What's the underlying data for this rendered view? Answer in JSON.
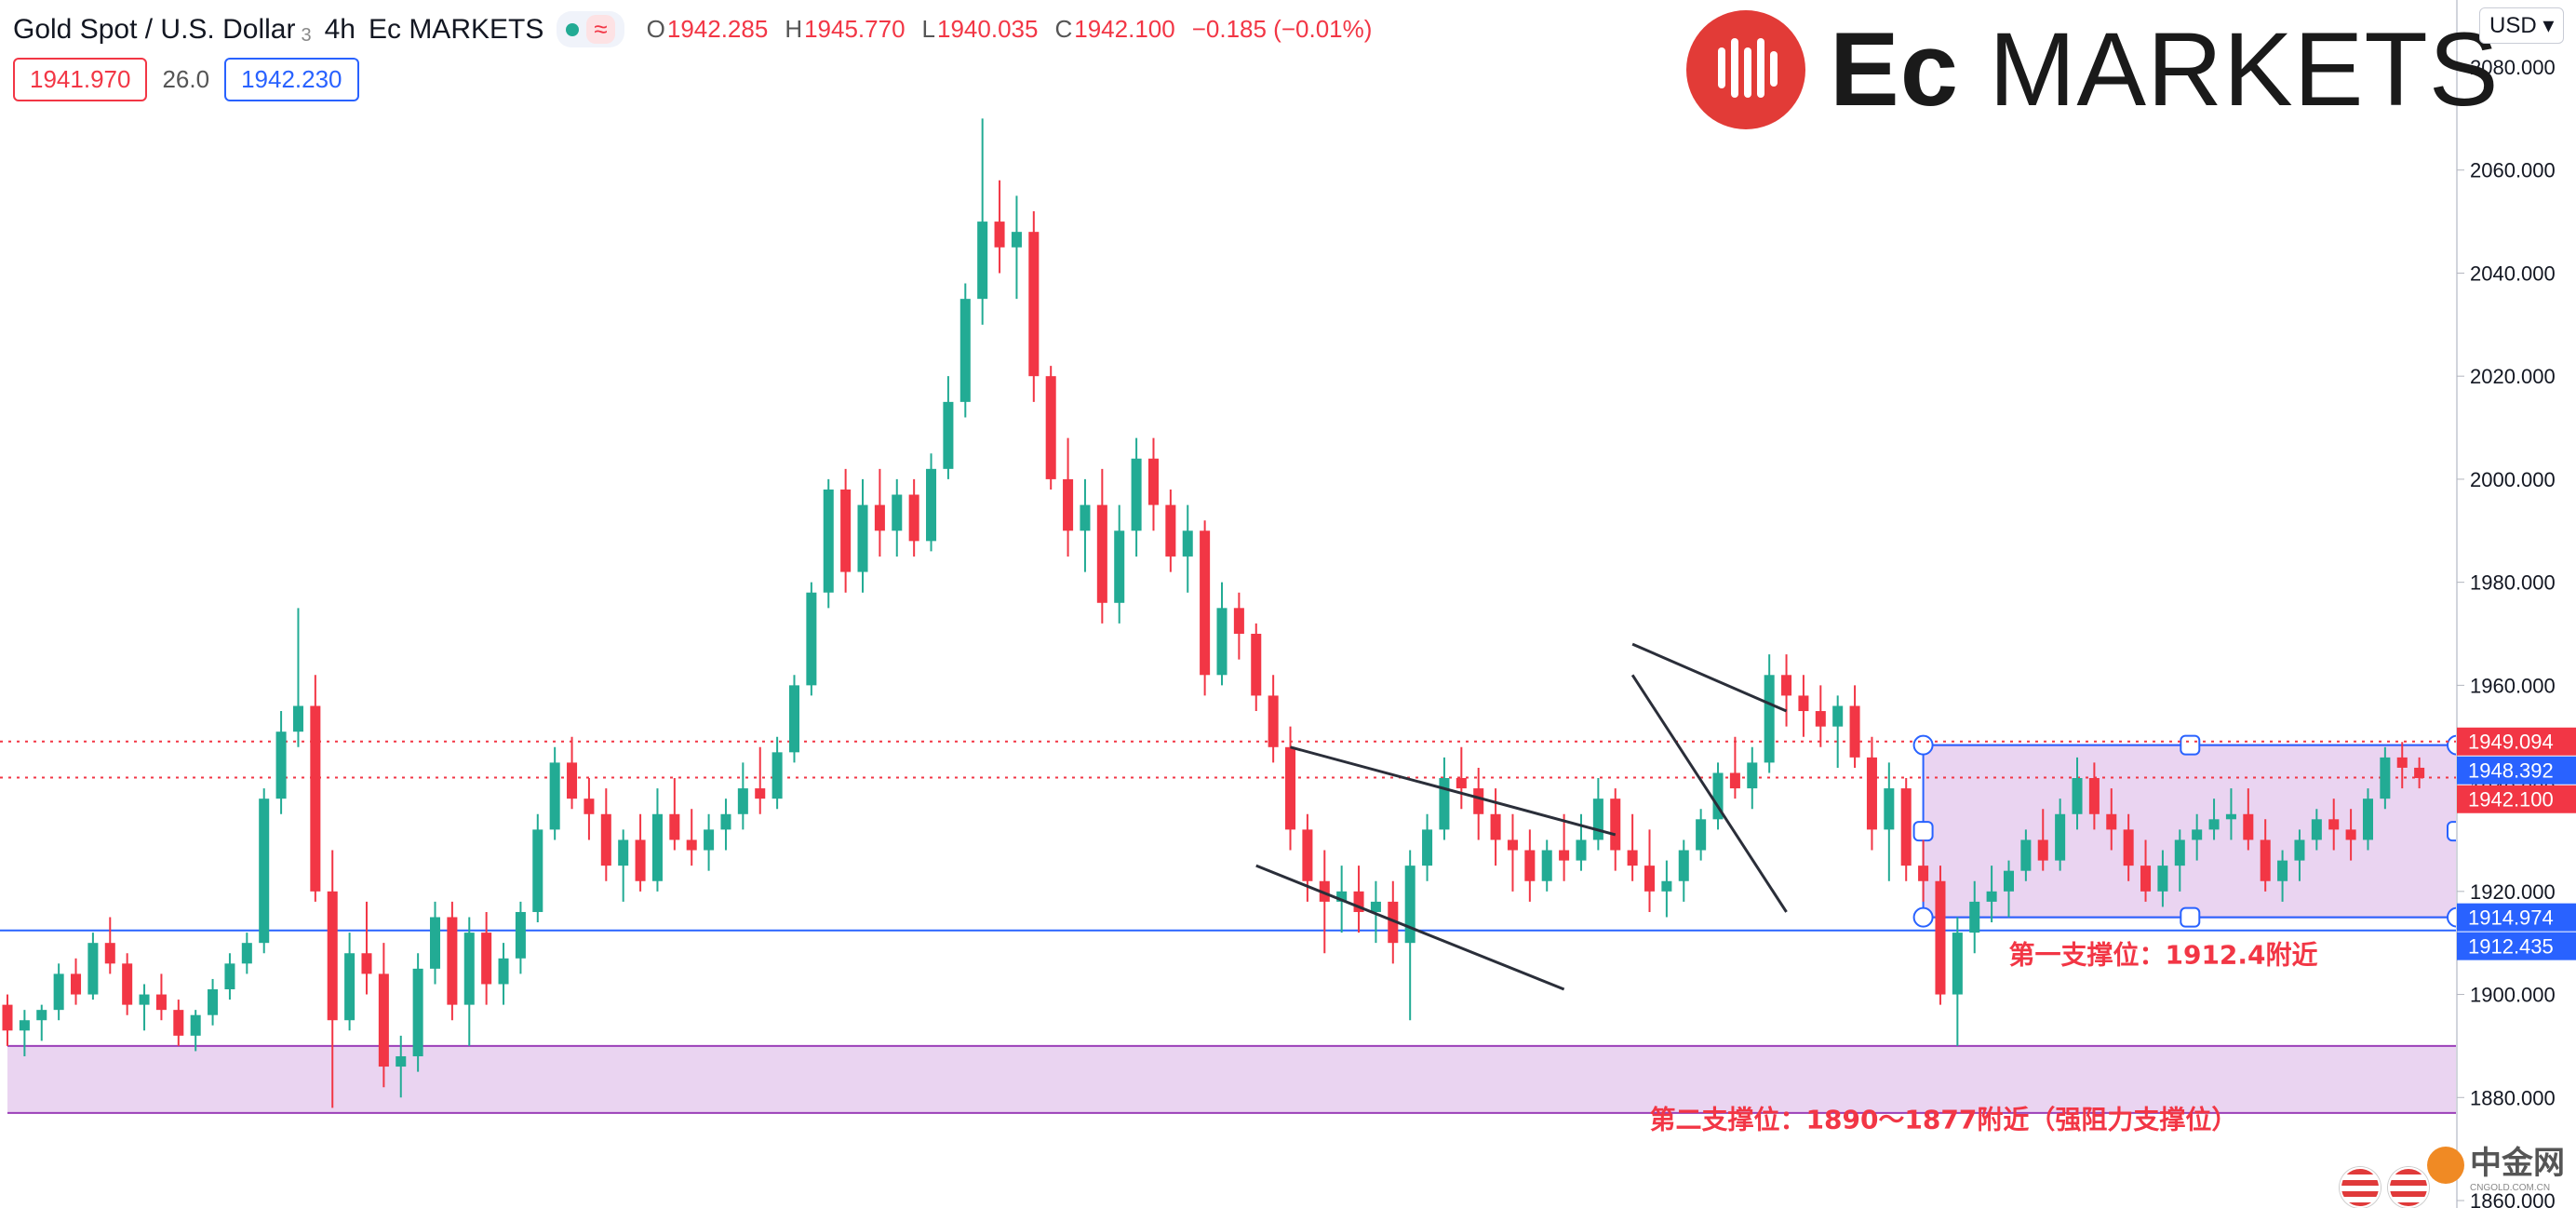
{
  "header": {
    "symbol": "Gold Spot / U.S. Dollar",
    "sub": "3",
    "interval": "4h",
    "broker": "Ec MARKETS",
    "open_label": "O",
    "open": "1942.285",
    "high_label": "H",
    "high": "1945.770",
    "low_label": "L",
    "low": "1940.035",
    "close_label": "C",
    "close": "1942.100",
    "change": "−0.185 (−0.01%)"
  },
  "quote": {
    "sell": "1941.970",
    "spread": "26.0",
    "buy": "1942.230"
  },
  "logo": {
    "text_a": "Ec",
    "text_b": " MARKETS"
  },
  "currency_button": "USD",
  "watermark": {
    "name": "中金网",
    "sub": "CNGOLD.COM.CN"
  },
  "colors": {
    "up": "#22ab94",
    "down": "#f23645",
    "support_line": "#2962ff",
    "zone_fill": "#e6cdef",
    "zone_border": "#9b3fb8",
    "annotation": "#f23645"
  },
  "chart_data": {
    "type": "candlestick",
    "ylim": [
      1860,
      2085
    ],
    "y_ticks": [
      "2080.000",
      "2060.000",
      "2040.000",
      "2020.000",
      "2000.000",
      "1980.000",
      "1960.000",
      "1940.000",
      "1920.000",
      "1900.000",
      "1880.000",
      "1860.000"
    ],
    "y_tick_values": [
      2080,
      2060,
      2040,
      2020,
      2000,
      1980,
      1960,
      1940,
      1920,
      1900,
      1880,
      1860
    ],
    "candles": [
      [
        1898,
        1900,
        1890,
        1893
      ],
      [
        1893,
        1897,
        1888,
        1895
      ],
      [
        1895,
        1898,
        1891,
        1897
      ],
      [
        1897,
        1906,
        1895,
        1904
      ],
      [
        1904,
        1907,
        1898,
        1900
      ],
      [
        1900,
        1912,
        1899,
        1910
      ],
      [
        1910,
        1915,
        1904,
        1906
      ],
      [
        1906,
        1908,
        1896,
        1898
      ],
      [
        1898,
        1902,
        1893,
        1900
      ],
      [
        1900,
        1904,
        1895,
        1897
      ],
      [
        1897,
        1899,
        1890,
        1892
      ],
      [
        1892,
        1897,
        1889,
        1896
      ],
      [
        1896,
        1903,
        1894,
        1901
      ],
      [
        1901,
        1908,
        1899,
        1906
      ],
      [
        1906,
        1912,
        1904,
        1910
      ],
      [
        1910,
        1940,
        1908,
        1938
      ],
      [
        1938,
        1955,
        1935,
        1951
      ],
      [
        1951,
        1975,
        1948,
        1956
      ],
      [
        1956,
        1962,
        1918,
        1920
      ],
      [
        1920,
        1928,
        1878,
        1895
      ],
      [
        1895,
        1912,
        1893,
        1908
      ],
      [
        1908,
        1918,
        1900,
        1904
      ],
      [
        1904,
        1910,
        1882,
        1886
      ],
      [
        1886,
        1892,
        1880,
        1888
      ],
      [
        1888,
        1908,
        1885,
        1905
      ],
      [
        1905,
        1918,
        1902,
        1915
      ],
      [
        1915,
        1918,
        1895,
        1898
      ],
      [
        1898,
        1915,
        1890,
        1912
      ],
      [
        1912,
        1916,
        1898,
        1902
      ],
      [
        1902,
        1910,
        1898,
        1907
      ],
      [
        1907,
        1918,
        1904,
        1916
      ],
      [
        1916,
        1935,
        1914,
        1932
      ],
      [
        1932,
        1948,
        1930,
        1945
      ],
      [
        1945,
        1950,
        1936,
        1938
      ],
      [
        1938,
        1942,
        1930,
        1935
      ],
      [
        1935,
        1940,
        1922,
        1925
      ],
      [
        1925,
        1932,
        1918,
        1930
      ],
      [
        1930,
        1935,
        1920,
        1922
      ],
      [
        1922,
        1940,
        1920,
        1935
      ],
      [
        1935,
        1942,
        1928,
        1930
      ],
      [
        1930,
        1936,
        1925,
        1928
      ],
      [
        1928,
        1935,
        1924,
        1932
      ],
      [
        1932,
        1938,
        1928,
        1935
      ],
      [
        1935,
        1945,
        1932,
        1940
      ],
      [
        1940,
        1948,
        1935,
        1938
      ],
      [
        1938,
        1950,
        1936,
        1947
      ],
      [
        1947,
        1962,
        1945,
        1960
      ],
      [
        1960,
        1980,
        1958,
        1978
      ],
      [
        1978,
        2000,
        1975,
        1998
      ],
      [
        1998,
        2002,
        1978,
        1982
      ],
      [
        1982,
        2000,
        1978,
        1995
      ],
      [
        1995,
        2002,
        1985,
        1990
      ],
      [
        1990,
        2000,
        1985,
        1997
      ],
      [
        1997,
        2000,
        1985,
        1988
      ],
      [
        1988,
        2005,
        1986,
        2002
      ],
      [
        2002,
        2020,
        2000,
        2015
      ],
      [
        2015,
        2038,
        2012,
        2035
      ],
      [
        2035,
        2070,
        2030,
        2050
      ],
      [
        2050,
        2058,
        2040,
        2045
      ],
      [
        2045,
        2055,
        2035,
        2048
      ],
      [
        2048,
        2052,
        2015,
        2020
      ],
      [
        2020,
        2022,
        1998,
        2000
      ],
      [
        2000,
        2008,
        1985,
        1990
      ],
      [
        1990,
        2000,
        1982,
        1995
      ],
      [
        1995,
        2002,
        1972,
        1976
      ],
      [
        1976,
        1995,
        1972,
        1990
      ],
      [
        1990,
        2008,
        1985,
        2004
      ],
      [
        2004,
        2008,
        1990,
        1995
      ],
      [
        1995,
        1998,
        1982,
        1985
      ],
      [
        1985,
        1995,
        1978,
        1990
      ],
      [
        1990,
        1992,
        1958,
        1962
      ],
      [
        1962,
        1980,
        1960,
        1975
      ],
      [
        1975,
        1978,
        1965,
        1970
      ],
      [
        1970,
        1972,
        1955,
        1958
      ],
      [
        1958,
        1962,
        1945,
        1948
      ],
      [
        1948,
        1952,
        1928,
        1932
      ],
      [
        1932,
        1935,
        1918,
        1922
      ],
      [
        1922,
        1928,
        1908,
        1918
      ],
      [
        1918,
        1925,
        1912,
        1920
      ],
      [
        1920,
        1925,
        1912,
        1916
      ],
      [
        1916,
        1922,
        1910,
        1918
      ],
      [
        1918,
        1922,
        1906,
        1910
      ],
      [
        1910,
        1928,
        1895,
        1925
      ],
      [
        1925,
        1935,
        1922,
        1932
      ],
      [
        1932,
        1946,
        1930,
        1942
      ],
      [
        1942,
        1948,
        1936,
        1940
      ],
      [
        1940,
        1944,
        1930,
        1935
      ],
      [
        1935,
        1940,
        1925,
        1930
      ],
      [
        1930,
        1935,
        1920,
        1928
      ],
      [
        1928,
        1932,
        1918,
        1922
      ],
      [
        1922,
        1930,
        1920,
        1928
      ],
      [
        1928,
        1935,
        1922,
        1926
      ],
      [
        1926,
        1935,
        1924,
        1930
      ],
      [
        1930,
        1942,
        1928,
        1938
      ],
      [
        1938,
        1940,
        1924,
        1928
      ],
      [
        1928,
        1935,
        1922,
        1925
      ],
      [
        1925,
        1932,
        1916,
        1920
      ],
      [
        1920,
        1926,
        1915,
        1922
      ],
      [
        1922,
        1930,
        1918,
        1928
      ],
      [
        1928,
        1936,
        1926,
        1934
      ],
      [
        1934,
        1945,
        1932,
        1943
      ],
      [
        1943,
        1950,
        1938,
        1940
      ],
      [
        1940,
        1948,
        1936,
        1945
      ],
      [
        1945,
        1966,
        1943,
        1962
      ],
      [
        1962,
        1966,
        1952,
        1958
      ],
      [
        1958,
        1962,
        1950,
        1955
      ],
      [
        1955,
        1960,
        1948,
        1952
      ],
      [
        1952,
        1958,
        1944,
        1956
      ],
      [
        1956,
        1960,
        1944,
        1946
      ],
      [
        1946,
        1950,
        1928,
        1932
      ],
      [
        1932,
        1945,
        1922,
        1940
      ],
      [
        1940,
        1942,
        1922,
        1925
      ],
      [
        1925,
        1930,
        1918,
        1922
      ],
      [
        1922,
        1925,
        1898,
        1900
      ],
      [
        1900,
        1915,
        1890,
        1912
      ],
      [
        1912,
        1922,
        1908,
        1918
      ],
      [
        1918,
        1925,
        1914,
        1920
      ],
      [
        1920,
        1926,
        1915,
        1924
      ],
      [
        1924,
        1932,
        1922,
        1930
      ],
      [
        1930,
        1936,
        1924,
        1926
      ],
      [
        1926,
        1938,
        1924,
        1935
      ],
      [
        1935,
        1946,
        1932,
        1942
      ],
      [
        1942,
        1945,
        1932,
        1935
      ],
      [
        1935,
        1940,
        1928,
        1932
      ],
      [
        1932,
        1935,
        1922,
        1925
      ],
      [
        1925,
        1930,
        1918,
        1920
      ],
      [
        1920,
        1928,
        1917,
        1925
      ],
      [
        1925,
        1932,
        1920,
        1930
      ],
      [
        1930,
        1935,
        1926,
        1932
      ],
      [
        1932,
        1938,
        1930,
        1934
      ],
      [
        1934,
        1940,
        1930,
        1935
      ],
      [
        1935,
        1940,
        1928,
        1930
      ],
      [
        1930,
        1934,
        1920,
        1922
      ],
      [
        1922,
        1928,
        1918,
        1926
      ],
      [
        1926,
        1932,
        1922,
        1930
      ],
      [
        1930,
        1936,
        1928,
        1934
      ],
      [
        1934,
        1938,
        1928,
        1932
      ],
      [
        1932,
        1936,
        1926,
        1930
      ],
      [
        1930,
        1940,
        1928,
        1938
      ],
      [
        1938,
        1948,
        1936,
        1946
      ],
      [
        1946,
        1949,
        1940,
        1944
      ],
      [
        1944,
        1946,
        1940,
        1942
      ]
    ],
    "horizontal_lines": [
      {
        "price": 1912.435,
        "style": "solid",
        "color": "#2962ff"
      },
      {
        "price": 1949.094,
        "style": "dotted",
        "color": "#f23645"
      },
      {
        "price": 1942.1,
        "style": "dotted",
        "color": "#f23645"
      }
    ],
    "price_labels": [
      {
        "text": "1949.094",
        "price": 1949.094,
        "bg": "#f23645"
      },
      {
        "text": "1948.392",
        "price": 1948.392,
        "bg": "#2962ff"
      },
      {
        "text": "1942.100",
        "price": 1942.1,
        "bg": "#f23645"
      },
      {
        "text": "1914.974",
        "price": 1914.974,
        "bg": "#2962ff"
      },
      {
        "text": "1912.435",
        "price": 1912.435,
        "bg": "#2962ff"
      }
    ],
    "zones": [
      {
        "top": 1948.392,
        "bottom": 1914.974,
        "start_candle": 112,
        "end_candle": 144,
        "fill": "#e6cdef",
        "border": "#9b3fb8",
        "handles": true
      },
      {
        "top": 1890,
        "bottom": 1877,
        "start_candle": 0,
        "end_candle": 152,
        "fill": "#e6cdef",
        "border": "#9b3fb8",
        "handles": false
      }
    ],
    "trendlines": [
      [
        75,
        1948,
        94,
        1931
      ],
      [
        73,
        1925,
        91,
        1901
      ],
      [
        95,
        1968,
        104,
        1955
      ],
      [
        95,
        1962,
        104,
        1916
      ]
    ],
    "annotations": [
      {
        "text": "第一支撑位：1912.4附近",
        "candle": 117,
        "price": 1906
      },
      {
        "text": "第二支撑位：1890～1877附近（强阻力支撑位）",
        "candle": 96,
        "price": 1874
      }
    ]
  }
}
